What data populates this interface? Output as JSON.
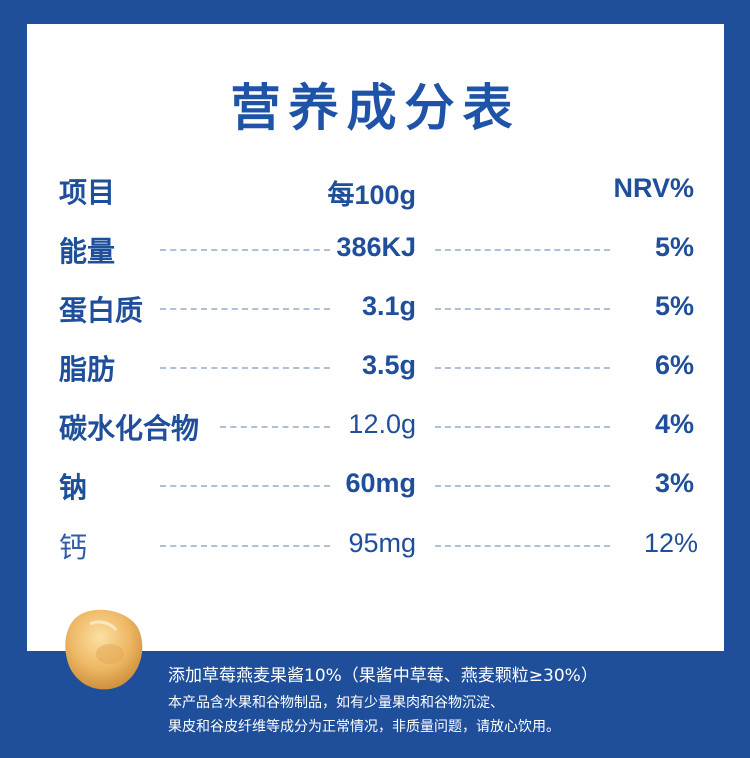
{
  "title": "营养成分表",
  "header": {
    "item": "项目",
    "per": "每100g",
    "nrv": "NRV%"
  },
  "rows": [
    {
      "name": "能量",
      "value": "386KJ",
      "nrv": "5%"
    },
    {
      "name": "蛋白质",
      "value": "3.1g",
      "nrv": "5%"
    },
    {
      "name": "脂肪",
      "value": "3.5g",
      "nrv": "6%"
    },
    {
      "name": "碳水化合物",
      "value": "12.0g",
      "nrv": "4%"
    },
    {
      "name": "钠",
      "value": "60mg",
      "nrv": "3%"
    },
    {
      "name": "钙",
      "value": "95mg",
      "nrv": "12%"
    }
  ],
  "footer": {
    "line1": "添加草莓燕麦果酱10%（果酱中草莓、燕麦颗粒≥30%）",
    "line2": "本产品含水果和谷物制品，如有少量果肉和谷物沉淀、",
    "line3": "果皮和谷皮纤维等成分为正常情况，非质量问题，请放心饮用。"
  },
  "colors": {
    "background": "#1f4f9a",
    "text": "#1f4f9a",
    "panel": "#ffffff"
  }
}
